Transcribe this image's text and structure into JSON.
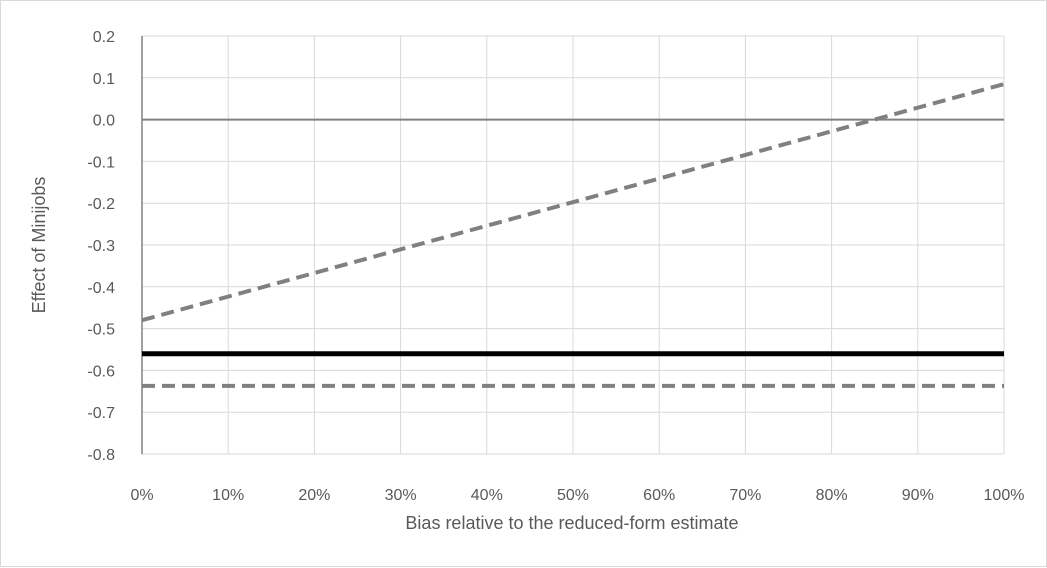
{
  "chart_data": {
    "type": "line",
    "title": "",
    "xlabel": "Bias relative to the reduced-form estimate",
    "ylabel": "Effect of Minijobs",
    "x_tick_labels": [
      "0%",
      "10%",
      "20%",
      "30%",
      "40%",
      "50%",
      "60%",
      "70%",
      "80%",
      "90%",
      "100%"
    ],
    "y_tick_labels": [
      "0.2",
      "0.1",
      "0.0",
      "-0.1",
      "-0.2",
      "-0.3",
      "-0.4",
      "-0.5",
      "-0.6",
      "-0.7",
      "-0.8"
    ],
    "xlim": [
      0,
      100
    ],
    "ylim": [
      -0.8,
      0.2
    ],
    "x_ticks": [
      0,
      10,
      20,
      30,
      40,
      50,
      60,
      70,
      80,
      90,
      100
    ],
    "y_ticks": [
      0.2,
      0.1,
      0.0,
      -0.1,
      -0.2,
      -0.3,
      -0.4,
      -0.5,
      -0.6,
      -0.7,
      -0.8
    ],
    "grid": true,
    "legend": "none",
    "series": [
      {
        "style": "dashed",
        "color": "#808080",
        "x": [
          0,
          100
        ],
        "y": [
          -0.48,
          0.085
        ]
      },
      {
        "style": "solid",
        "color": "#000000",
        "x": [
          0,
          100
        ],
        "y": [
          -0.56,
          -0.56
        ]
      },
      {
        "style": "dashed",
        "color": "#808080",
        "x": [
          0,
          100
        ],
        "y": [
          -0.637,
          -0.637
        ]
      }
    ],
    "reference_line": {
      "y": 0.0,
      "color": "#808080"
    }
  },
  "colors": {
    "grid": "#d9d9d9",
    "axis": "#808080",
    "text": "#595959"
  }
}
